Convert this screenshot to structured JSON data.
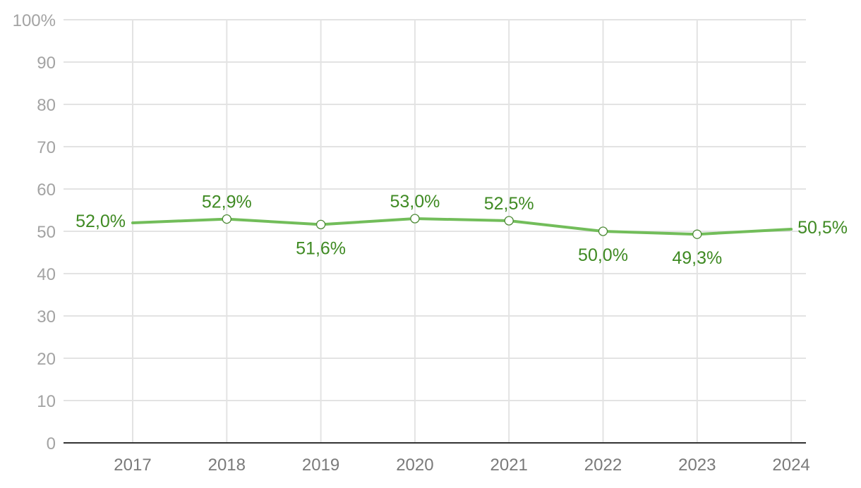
{
  "chart_data": {
    "type": "line",
    "categories": [
      "2017",
      "2018",
      "2019",
      "2020",
      "2021",
      "2022",
      "2023",
      "2024"
    ],
    "series": [
      {
        "values": [
          52.0,
          52.9,
          51.6,
          53.0,
          52.5,
          50.0,
          49.3,
          50.5
        ],
        "labels": [
          "52,0%",
          "52,9%",
          "51,6%",
          "53,0%",
          "52,5%",
          "50,0%",
          "49,3%",
          "50,5%"
        ]
      }
    ],
    "y_ticks": [
      "0",
      "10",
      "20",
      "30",
      "40",
      "50",
      "60",
      "70",
      "80",
      "90",
      "100%"
    ],
    "ylim": [
      0,
      100
    ],
    "grid": true,
    "title": "",
    "xlabel": "",
    "ylabel": "",
    "line_color": "#72bd5a",
    "label_color": "#3f8a23",
    "marker_color": "#4d8a36"
  }
}
